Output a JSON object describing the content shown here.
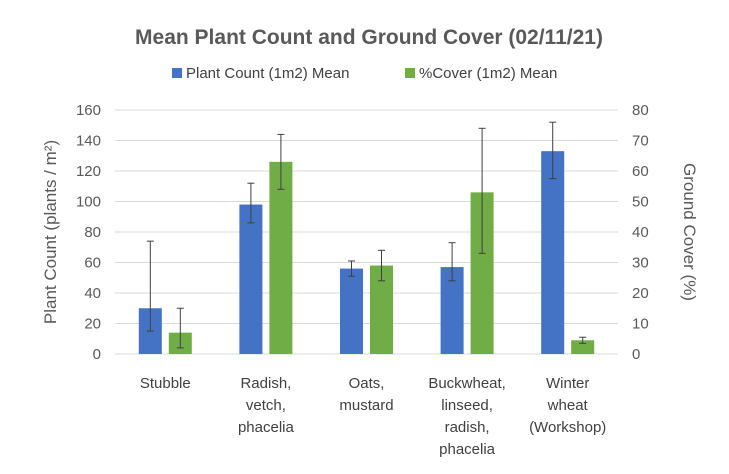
{
  "chart_data": {
    "type": "bar",
    "title": "Mean Plant Count and Ground Cover (02/11/21)",
    "categories": [
      [
        "Stubble"
      ],
      [
        "Radish,",
        "vetch,",
        "phacelia"
      ],
      [
        "Oats,",
        "mustard"
      ],
      [
        "Buckwheat,",
        "linseed,",
        "radish,",
        "phacelia"
      ],
      [
        "Winter",
        "wheat",
        "(Workshop)"
      ]
    ],
    "series": [
      {
        "name": "Plant Count (1m2) Mean",
        "axis": "left",
        "color": "#4472c4",
        "values": [
          30,
          98,
          56,
          57,
          133
        ],
        "err_low": [
          15,
          86,
          51,
          48,
          115
        ],
        "err_high": [
          74,
          112,
          61,
          73,
          152
        ]
      },
      {
        "name": "%Cover (1m2) Mean",
        "axis": "right",
        "color": "#70ad47",
        "values": [
          7,
          63,
          29,
          53,
          4.5
        ],
        "err_low": [
          2,
          54,
          24,
          33,
          3.5
        ],
        "err_high": [
          15,
          72,
          34,
          74,
          5.5
        ]
      }
    ],
    "y_left": {
      "label": "Plant Count (plants / m²)",
      "lim": [
        0,
        160
      ],
      "ticks": [
        "0",
        "20",
        "40",
        "60",
        "80",
        "100",
        "120",
        "140",
        "160"
      ]
    },
    "y_right": {
      "label": "Ground Cover (%)",
      "lim": [
        0,
        80
      ],
      "ticks": [
        "0",
        "10",
        "20",
        "30",
        "40",
        "50",
        "60",
        "70",
        "80"
      ]
    },
    "grid": true,
    "legend": "top"
  }
}
